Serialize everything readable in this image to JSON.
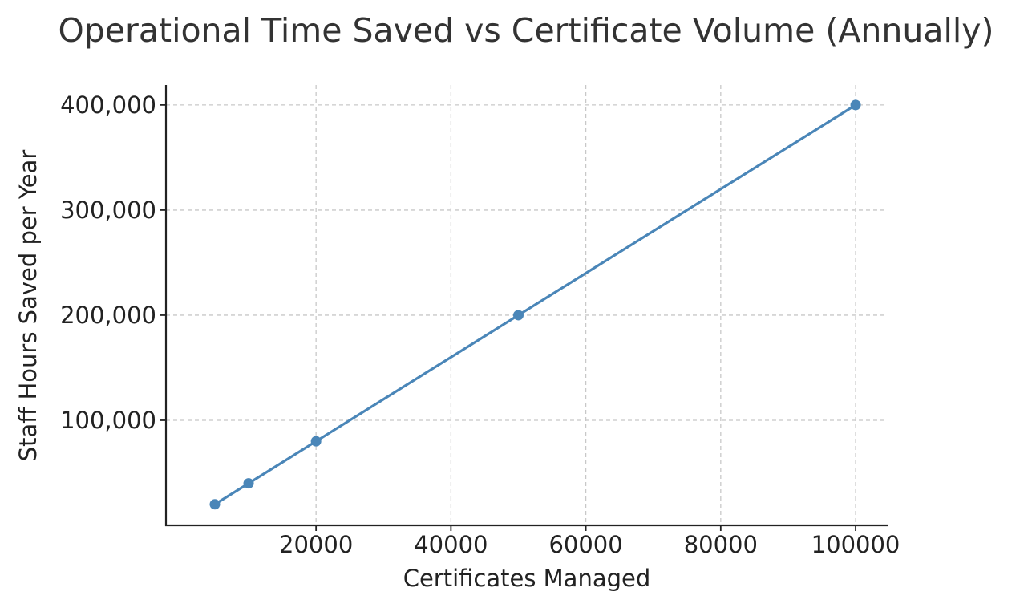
{
  "chart_data": {
    "type": "line",
    "title": "Operational Time Saved vs Certificate Volume (Annually)",
    "xlabel": "Certificates Managed",
    "ylabel": "Staff Hours Saved per Year",
    "x": [
      5000,
      10000,
      20000,
      50000,
      100000
    ],
    "series": [
      {
        "values": [
          20000,
          40000,
          80000,
          200000,
          400000
        ],
        "color": "#4a86b8"
      }
    ],
    "xlim": [
      -2250,
      104750
    ],
    "ylim": [
      0,
      419000
    ],
    "x_ticks": [
      20000,
      40000,
      60000,
      80000,
      100000
    ],
    "x_tick_labels": [
      "20000",
      "40000",
      "60000",
      "80000",
      "100000"
    ],
    "y_ticks": [
      100000,
      200000,
      300000,
      400000
    ],
    "y_tick_labels": [
      "100,000",
      "200,000",
      "300,000",
      "400,000"
    ],
    "grid": true,
    "grid_style": "dashed",
    "marker": "circle",
    "legend": "none",
    "colors": {
      "axis": "#222222",
      "grid": "#c8c8c8",
      "title": "#333333",
      "text": "#222222"
    }
  }
}
